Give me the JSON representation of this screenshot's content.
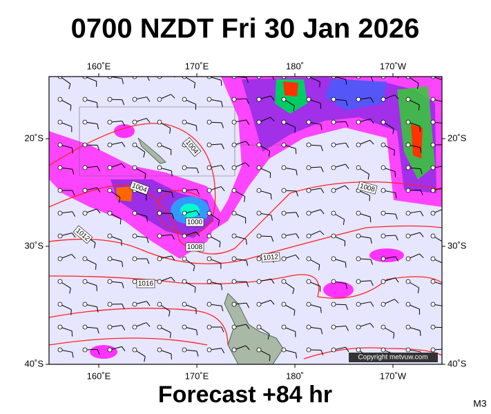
{
  "title": "0700 NZDT Fri 30 Jan 2026",
  "map": {
    "lon_labels": [
      "160˚E",
      "170˚E",
      "180˚",
      "170˚W"
    ],
    "lat_labels": [
      "20˚S",
      "30˚S",
      "40˚S"
    ],
    "isobar_labels": [
      "1004",
      "1004",
      "1008",
      "1012",
      "1000",
      "1008",
      "1012",
      "1016"
    ],
    "copyright": "Copyright metvuw.com"
  },
  "footer": "Forecast +84 hr",
  "model": "M3"
}
